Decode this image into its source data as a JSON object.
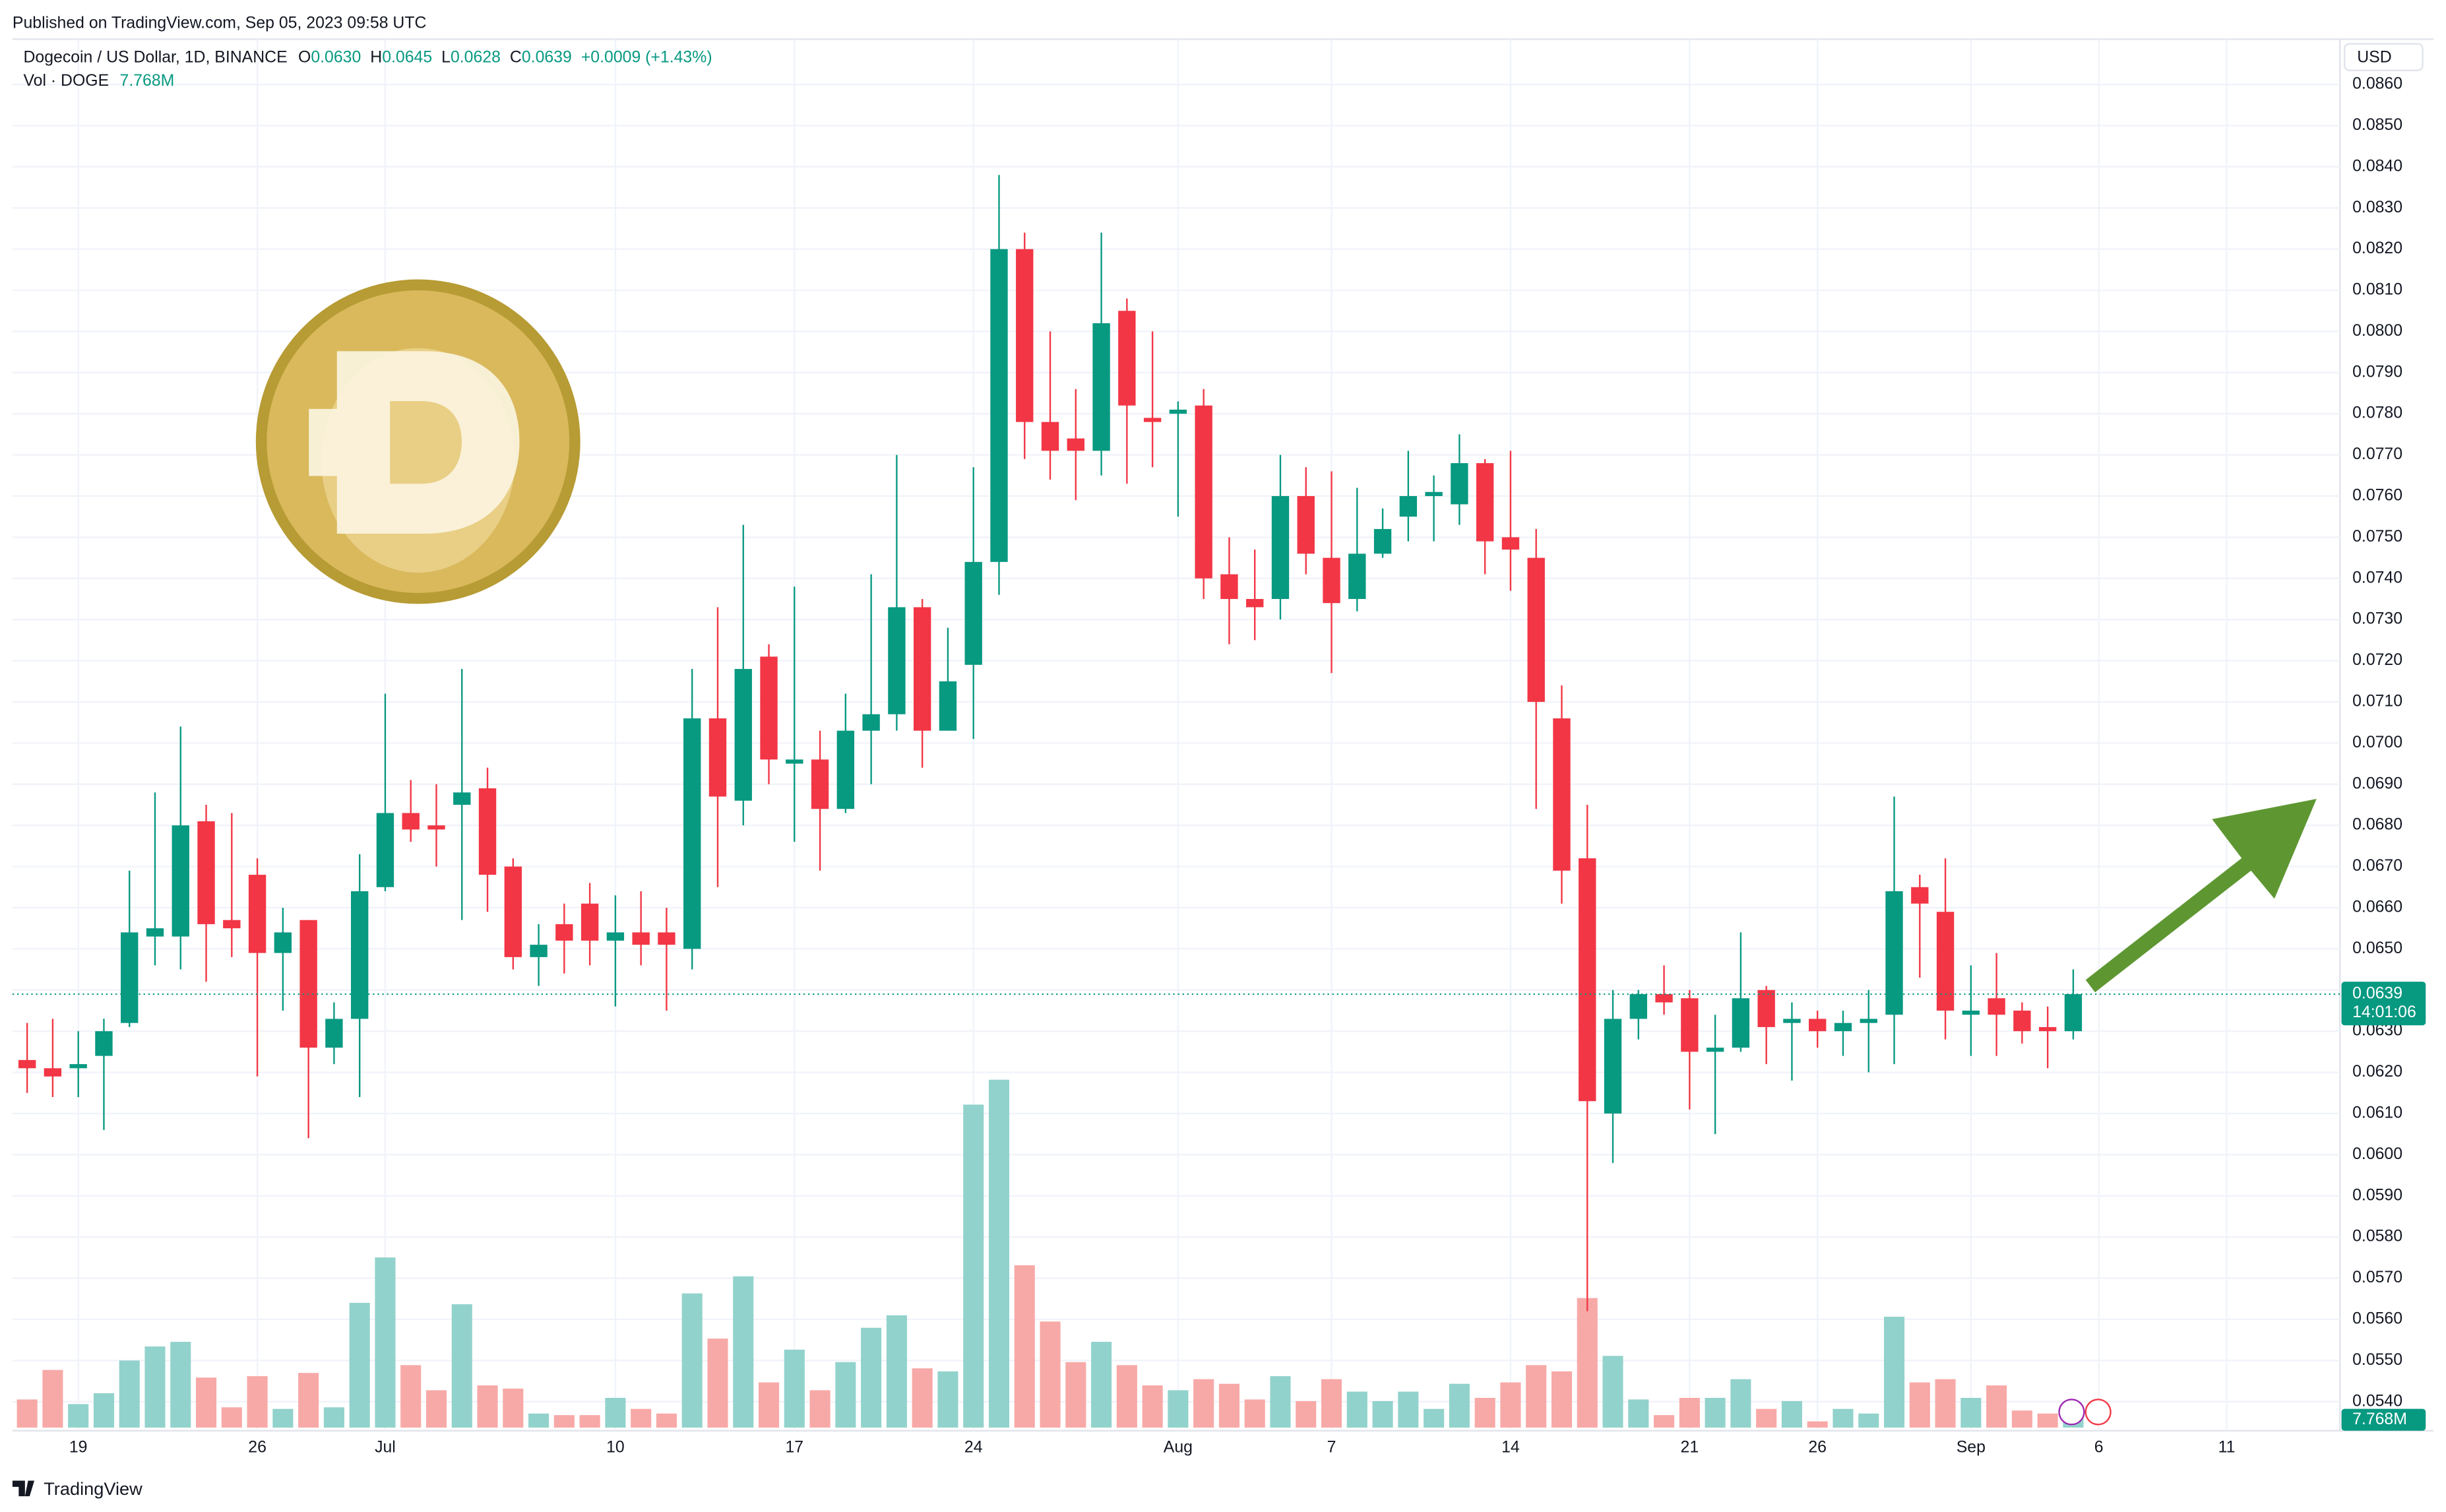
{
  "header": {
    "published": "Published on TradingView.com, Sep 05, 2023 09:58 UTC",
    "brand": "TradingView"
  },
  "chart_data": {
    "type": "candlestick",
    "legend": {
      "symbol": "Dogecoin / US Dollar, 1D, BINANCE",
      "o_key": "O",
      "o": "0.0630",
      "h_key": "H",
      "h": "0.0645",
      "l_key": "L",
      "l": "0.0628",
      "c_key": "C",
      "c": "0.0639",
      "change": "+0.0009 (+1.43%)",
      "vol_key": "Vol · DOGE",
      "vol": "7.768M"
    },
    "currency": "USD",
    "last_price_label": "0.0639",
    "countdown": "14:01:06",
    "up_color": "#089981",
    "down_color": "#f23645",
    "volume_up_color": "#92d2cc",
    "volume_down_color": "#f7a9a7",
    "grid": true,
    "x": [
      "2023-06-17",
      "2023-06-18",
      "2023-06-19",
      "2023-06-20",
      "2023-06-21",
      "2023-06-22",
      "2023-06-23",
      "2023-06-24",
      "2023-06-25",
      "2023-06-26",
      "2023-06-27",
      "2023-06-28",
      "2023-06-29",
      "2023-06-30",
      "2023-07-01",
      "2023-07-02",
      "2023-07-03",
      "2023-07-04",
      "2023-07-05",
      "2023-07-06",
      "2023-07-07",
      "2023-07-08",
      "2023-07-09",
      "2023-07-10",
      "2023-07-11",
      "2023-07-12",
      "2023-07-13",
      "2023-07-14",
      "2023-07-15",
      "2023-07-16",
      "2023-07-17",
      "2023-07-18",
      "2023-07-19",
      "2023-07-20",
      "2023-07-21",
      "2023-07-22",
      "2023-07-23",
      "2023-07-24",
      "2023-07-25",
      "2023-07-26",
      "2023-07-27",
      "2023-07-28",
      "2023-07-29",
      "2023-07-30",
      "2023-07-31",
      "2023-08-01",
      "2023-08-02",
      "2023-08-03",
      "2023-08-04",
      "2023-08-05",
      "2023-08-06",
      "2023-08-07",
      "2023-08-08",
      "2023-08-09",
      "2023-08-10",
      "2023-08-11",
      "2023-08-12",
      "2023-08-13",
      "2023-08-14",
      "2023-08-15",
      "2023-08-16",
      "2023-08-17",
      "2023-08-18",
      "2023-08-19",
      "2023-08-20",
      "2023-08-21",
      "2023-08-22",
      "2023-08-23",
      "2023-08-24",
      "2023-08-25",
      "2023-08-26",
      "2023-08-27",
      "2023-08-28",
      "2023-08-29",
      "2023-08-30",
      "2023-08-31",
      "2023-09-01",
      "2023-09-02",
      "2023-09-03",
      "2023-09-04",
      "2023-09-05"
    ],
    "open": [
      0.0623,
      0.0621,
      0.0621,
      0.0624,
      0.0632,
      0.0653,
      0.0653,
      0.0681,
      0.0657,
      0.0668,
      0.0649,
      0.0657,
      0.0626,
      0.0633,
      0.0665,
      0.0683,
      0.068,
      0.0685,
      0.0689,
      0.067,
      0.0648,
      0.0656,
      0.0661,
      0.0652,
      0.0654,
      0.0654,
      0.065,
      0.0706,
      0.0686,
      0.0721,
      0.0695,
      0.0696,
      0.0684,
      0.0703,
      0.0707,
      0.0733,
      0.0703,
      0.0719,
      0.0744,
      0.082,
      0.0778,
      0.0774,
      0.0771,
      0.0805,
      0.0779,
      0.078,
      0.0782,
      0.0741,
      0.0735,
      0.0735,
      0.076,
      0.0745,
      0.0735,
      0.0746,
      0.0755,
      0.076,
      0.0758,
      0.0768,
      0.075,
      0.0745,
      0.0706,
      0.0672,
      0.061,
      0.0633,
      0.0639,
      0.0638,
      0.0625,
      0.0626,
      0.064,
      0.0632,
      0.0633,
      0.063,
      0.0632,
      0.0634,
      0.0665,
      0.0659,
      0.0634,
      0.0638,
      0.0635,
      0.0631,
      0.063
    ],
    "high": [
      0.0632,
      0.0633,
      0.063,
      0.0633,
      0.0669,
      0.0688,
      0.0704,
      0.0685,
      0.0683,
      0.0672,
      0.066,
      0.0657,
      0.0637,
      0.0673,
      0.0712,
      0.0691,
      0.069,
      0.0718,
      0.0694,
      0.0672,
      0.0656,
      0.0661,
      0.0666,
      0.0663,
      0.0664,
      0.066,
      0.0718,
      0.0733,
      0.0753,
      0.0724,
      0.0738,
      0.0703,
      0.0712,
      0.0741,
      0.077,
      0.0735,
      0.0728,
      0.0767,
      0.0838,
      0.0824,
      0.08,
      0.0786,
      0.0824,
      0.0808,
      0.08,
      0.0783,
      0.0786,
      0.075,
      0.0747,
      0.077,
      0.0767,
      0.0766,
      0.0762,
      0.0757,
      0.0771,
      0.0765,
      0.0775,
      0.0769,
      0.0771,
      0.0752,
      0.0714,
      0.0685,
      0.064,
      0.064,
      0.0646,
      0.064,
      0.0634,
      0.0654,
      0.0641,
      0.0637,
      0.0635,
      0.0635,
      0.064,
      0.0687,
      0.0668,
      0.0672,
      0.0646,
      0.0649,
      0.0637,
      0.0636,
      0.0645
    ],
    "low": [
      0.0615,
      0.0614,
      0.0614,
      0.0606,
      0.0631,
      0.0646,
      0.0645,
      0.0642,
      0.0648,
      0.0619,
      0.0635,
      0.0604,
      0.0622,
      0.0614,
      0.0664,
      0.0676,
      0.067,
      0.0657,
      0.0659,
      0.0645,
      0.0641,
      0.0644,
      0.0646,
      0.0636,
      0.0646,
      0.0635,
      0.0645,
      0.0665,
      0.068,
      0.069,
      0.0676,
      0.0669,
      0.0683,
      0.069,
      0.0703,
      0.0694,
      0.0703,
      0.0701,
      0.0736,
      0.0769,
      0.0764,
      0.0759,
      0.0765,
      0.0763,
      0.0767,
      0.0755,
      0.0735,
      0.0724,
      0.0725,
      0.073,
      0.0741,
      0.0717,
      0.0732,
      0.0745,
      0.0749,
      0.0749,
      0.0753,
      0.0741,
      0.0737,
      0.0684,
      0.0661,
      0.0562,
      0.0598,
      0.0628,
      0.0634,
      0.0611,
      0.0605,
      0.0625,
      0.0622,
      0.0618,
      0.0626,
      0.0624,
      0.062,
      0.0622,
      0.0643,
      0.0628,
      0.0624,
      0.0624,
      0.0627,
      0.0621,
      0.0628
    ],
    "close": [
      0.0621,
      0.0619,
      0.0622,
      0.063,
      0.0654,
      0.0655,
      0.068,
      0.0656,
      0.0655,
      0.0649,
      0.0654,
      0.0626,
      0.0633,
      0.0664,
      0.0683,
      0.0679,
      0.0679,
      0.0688,
      0.0668,
      0.0648,
      0.0651,
      0.0652,
      0.0652,
      0.0654,
      0.0651,
      0.0651,
      0.0706,
      0.0687,
      0.0718,
      0.0696,
      0.0696,
      0.0684,
      0.0703,
      0.0707,
      0.0733,
      0.0703,
      0.0715,
      0.0744,
      0.082,
      0.0778,
      0.0771,
      0.0771,
      0.0802,
      0.0782,
      0.0778,
      0.0781,
      0.074,
      0.0735,
      0.0733,
      0.076,
      0.0746,
      0.0734,
      0.0746,
      0.0752,
      0.076,
      0.0761,
      0.0768,
      0.0749,
      0.0747,
      0.071,
      0.0669,
      0.0613,
      0.0633,
      0.0639,
      0.0637,
      0.0625,
      0.0626,
      0.0638,
      0.0631,
      0.0633,
      0.063,
      0.0632,
      0.0633,
      0.0664,
      0.0661,
      0.0635,
      0.0635,
      0.0634,
      0.063,
      0.063,
      0.0639
    ],
    "volume": [
      14.0,
      28.7,
      11.7,
      17.1,
      33.4,
      40.4,
      42.7,
      24.9,
      10.1,
      25.6,
      9.3,
      27.2,
      10.1,
      62.1,
      84.7,
      31.1,
      18.6,
      61.4,
      21.0,
      19.4,
      7.0,
      6.2,
      6.2,
      14.8,
      9.3,
      7.0,
      66.8,
      44.3,
      75.3,
      22.5,
      38.8,
      18.6,
      32.6,
      49.7,
      55.9,
      29.5,
      28.0,
      160.8,
      173.2,
      80.8,
      52.8,
      32.6,
      42.7,
      31.1,
      21.0,
      18.6,
      24.1,
      21.8,
      14.0,
      25.6,
      13.2,
      24.1,
      17.9,
      13.2,
      17.9,
      9.3,
      21.8,
      14.8,
      22.5,
      31.1,
      28.0,
      64.5,
      35.7,
      14.0,
      6.2,
      14.8,
      14.8,
      24.1,
      9.3,
      13.2,
      3.1,
      9.3,
      7.0,
      55.2,
      22.5,
      24.1,
      14.8,
      21.0,
      8.5,
      7.0,
      7.768
    ],
    "xlim": [
      "2023-06-16",
      "2023-09-15"
    ],
    "xticks": [
      {
        "value": "2023-06-19",
        "label": "19"
      },
      {
        "value": "2023-06-26",
        "label": "26"
      },
      {
        "value": "2023-07-01",
        "label": "Jul"
      },
      {
        "value": "2023-07-10",
        "label": "10"
      },
      {
        "value": "2023-07-17",
        "label": "17"
      },
      {
        "value": "2023-07-24",
        "label": "24"
      },
      {
        "value": "2023-08-01",
        "label": "Aug"
      },
      {
        "value": "2023-08-07",
        "label": "7"
      },
      {
        "value": "2023-08-14",
        "label": "14"
      },
      {
        "value": "2023-08-21",
        "label": "21"
      },
      {
        "value": "2023-08-26",
        "label": "26"
      },
      {
        "value": "2023-09-01",
        "label": "Sep"
      },
      {
        "value": "2023-09-06",
        "label": "6"
      },
      {
        "value": "2023-09-11",
        "label": "11"
      }
    ],
    "ylim": [
      0.05337,
      0.0871
    ],
    "yticks": [
      {
        "value": 0.054,
        "label": "0.0540"
      },
      {
        "value": 0.055,
        "label": "0.0550"
      },
      {
        "value": 0.056,
        "label": "0.0560"
      },
      {
        "value": 0.057,
        "label": "0.0570"
      },
      {
        "value": 0.058,
        "label": "0.0580"
      },
      {
        "value": 0.059,
        "label": "0.0590"
      },
      {
        "value": 0.06,
        "label": "0.0600"
      },
      {
        "value": 0.061,
        "label": "0.0610"
      },
      {
        "value": 0.062,
        "label": "0.0620"
      },
      {
        "value": 0.063,
        "label": "0.0630"
      },
      {
        "value": 0.064,
        "label": "0.0640"
      },
      {
        "value": 0.065,
        "label": "0.0650"
      },
      {
        "value": 0.066,
        "label": "0.0660"
      },
      {
        "value": 0.067,
        "label": "0.0670"
      },
      {
        "value": 0.068,
        "label": "0.0680"
      },
      {
        "value": 0.069,
        "label": "0.0690"
      },
      {
        "value": 0.07,
        "label": "0.0700"
      },
      {
        "value": 0.071,
        "label": "0.0710"
      },
      {
        "value": 0.072,
        "label": "0.0720"
      },
      {
        "value": 0.073,
        "label": "0.0730"
      },
      {
        "value": 0.074,
        "label": "0.0740"
      },
      {
        "value": 0.075,
        "label": "0.0750"
      },
      {
        "value": 0.076,
        "label": "0.0760"
      },
      {
        "value": 0.077,
        "label": "0.0770"
      },
      {
        "value": 0.078,
        "label": "0.0780"
      },
      {
        "value": 0.079,
        "label": "0.0790"
      },
      {
        "value": 0.08,
        "label": "0.0800"
      },
      {
        "value": 0.081,
        "label": "0.0810"
      },
      {
        "value": 0.082,
        "label": "0.0820"
      },
      {
        "value": 0.083,
        "label": "0.0830"
      },
      {
        "value": 0.084,
        "label": "0.0840"
      },
      {
        "value": 0.085,
        "label": "0.0850"
      },
      {
        "value": 0.086,
        "label": "0.0860"
      }
    ]
  }
}
